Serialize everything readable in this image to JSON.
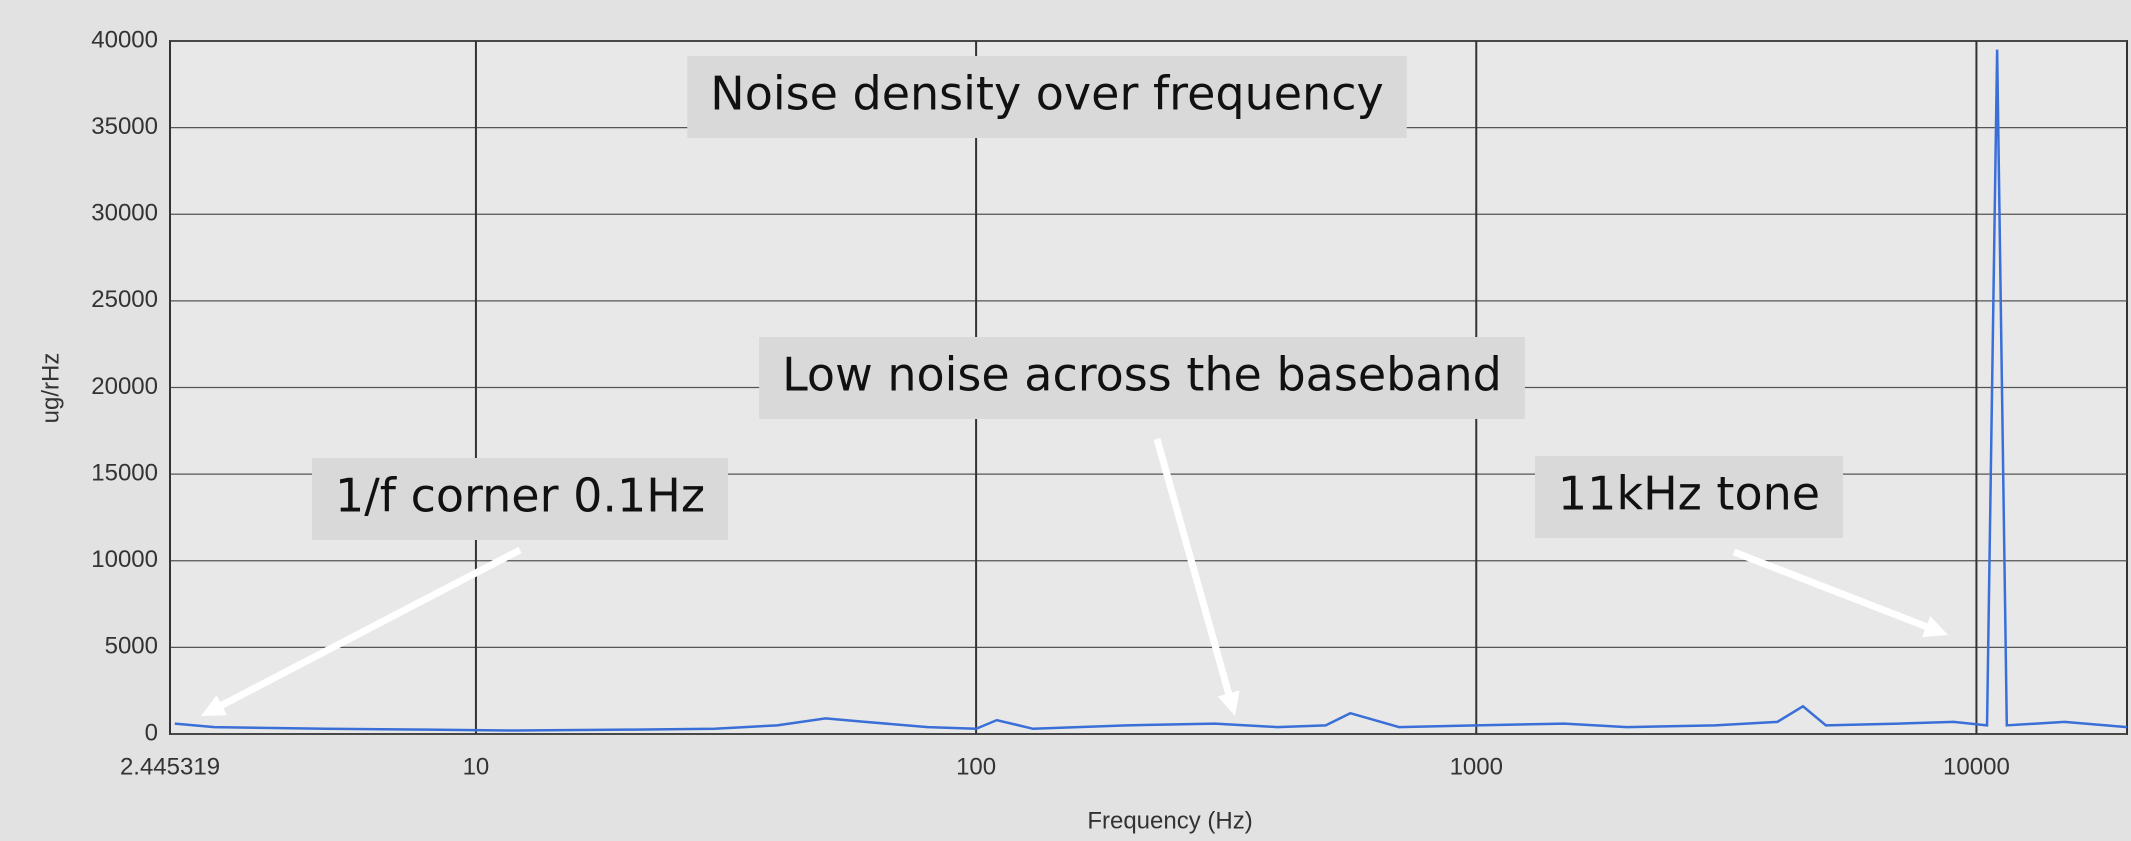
{
  "chart_data": {
    "type": "line",
    "x_label": "Frequency (Hz)",
    "y_label": "ug/rHz",
    "log_x": true,
    "grid": true,
    "xlim": [
      2.445319,
      20000
    ],
    "xticks": [
      2.445319,
      10,
      100,
      1000,
      10000
    ],
    "ylim": [
      0,
      40000
    ],
    "yticks": [
      0,
      5000,
      10000,
      15000,
      20000,
      25000,
      30000,
      35000,
      40000
    ],
    "annotations": [
      "Noise density over frequency",
      "Low noise across the baseband",
      "1/f corner 0.1Hz",
      "11kHz tone"
    ],
    "series": [
      {
        "color": "#3a6fd8",
        "x": [
          2.5,
          3,
          5,
          8,
          12,
          20,
          30,
          40,
          50,
          60,
          80,
          100,
          110,
          130,
          200,
          300,
          400,
          500,
          560,
          700,
          1000,
          1500,
          2000,
          3000,
          4000,
          4500,
          5000,
          7000,
          9000,
          10500,
          11000,
          11500,
          15000,
          20000
        ],
        "values": [
          600,
          400,
          300,
          250,
          200,
          250,
          300,
          500,
          900,
          700,
          400,
          300,
          800,
          300,
          500,
          600,
          400,
          500,
          1200,
          400,
          500,
          600,
          400,
          500,
          700,
          1600,
          500,
          600,
          700,
          500,
          39500,
          500,
          700,
          400
        ]
      }
    ]
  }
}
